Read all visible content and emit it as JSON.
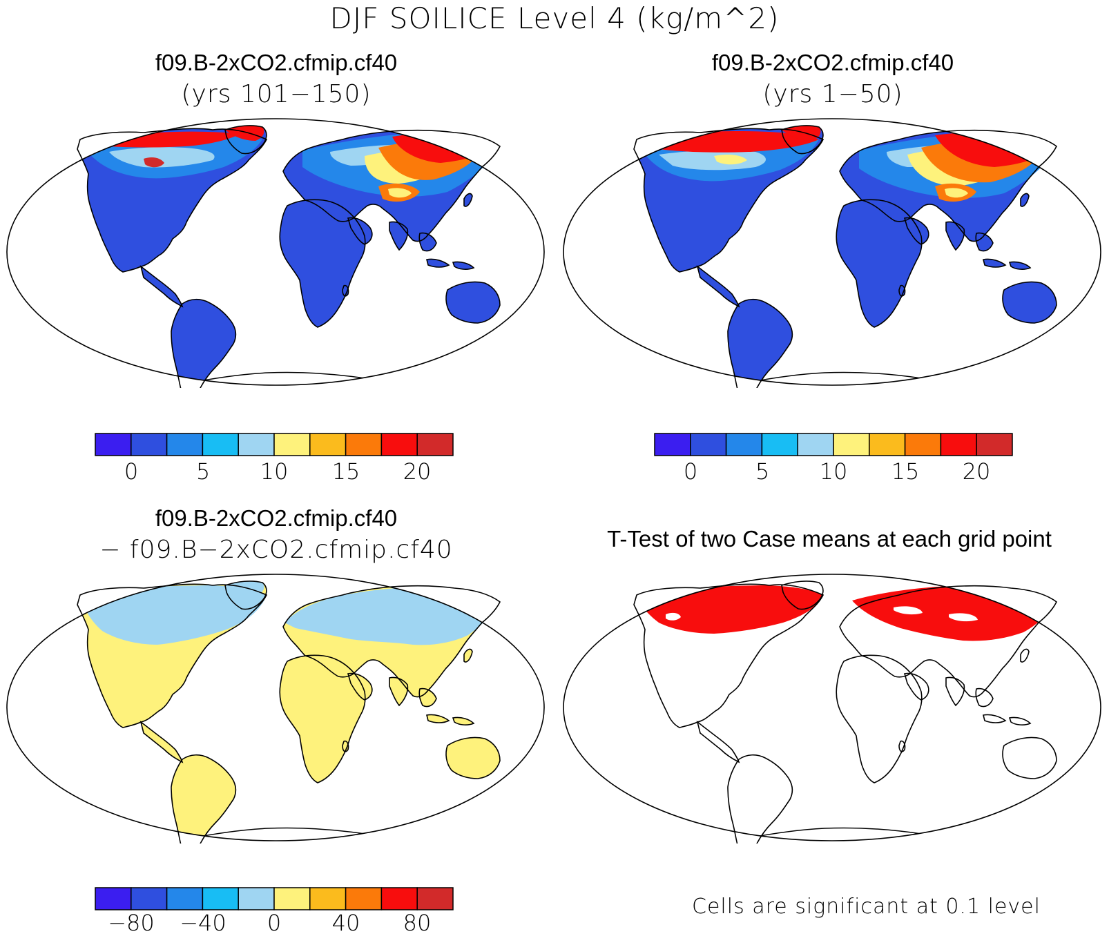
{
  "title": "DJF SOILICE Level 4 (kg/m^2)",
  "panels": {
    "top_left": {
      "title": "f09.B-2xCO2.cfmip.cf40",
      "subtitle": "(yrs 101−150)"
    },
    "top_right": {
      "title": "f09.B-2xCO2.cfmip.cf40",
      "subtitle": "(yrs 1−50)"
    },
    "bottom_left": {
      "title": "f09.B-2xCO2.cfmip.cf40",
      "subtitle": "− f09.B−2xCO2.cfmip.cf40"
    },
    "bottom_right": {
      "title": "T-Test of two Case means at each grid point",
      "footnote": "Cells are significant at 0.1 level"
    }
  },
  "colorbars": {
    "palette": [
      "#3b1ef0",
      "#2f4fdf",
      "#2487ea",
      "#18bdf4",
      "#9fd5f2",
      "#fef27c",
      "#fbbb1d",
      "#fb7a0a",
      "#f80d0d",
      "#d22a2a"
    ],
    "top_left": {
      "tick_labels": [
        "0",
        "5",
        "10",
        "15",
        "20"
      ]
    },
    "top_right": {
      "tick_labels": [
        "0",
        "5",
        "10",
        "15",
        "20"
      ]
    },
    "bottom_left": {
      "tick_labels": [
        "−80",
        "−40",
        "0",
        "40",
        "80"
      ]
    }
  },
  "colors": {
    "land_base": "#2f4fdf",
    "diff_positive": "#fef27c",
    "diff_negative": "#9fd5f2",
    "significant": "#f80d0d"
  }
}
